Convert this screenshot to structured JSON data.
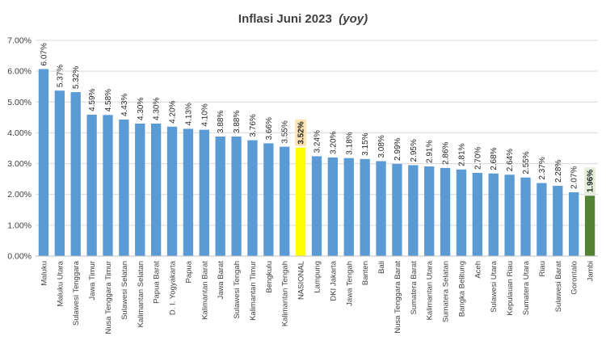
{
  "chart_data": {
    "type": "bar",
    "title": "Inflasi Juni 2023",
    "subtitle": "(yoy)",
    "xlabel": "",
    "ylabel": "",
    "ylim": [
      0,
      7
    ],
    "y_ticks": [
      "0.00%",
      "1.00%",
      "2.00%",
      "3.00%",
      "4.00%",
      "5.00%",
      "6.00%",
      "7.00%"
    ],
    "grid": true,
    "legend": "none",
    "colors": {
      "bar": "#5b9bd5",
      "national": "#ffff00",
      "national_label_bg": "#fce4b4",
      "lowest": "#548235",
      "lowest_label_bg": "#e2efda"
    },
    "categories": [
      "Maluku",
      "Maluku Utara",
      "Sulawesi Tenggara",
      "Jawa Timur",
      "Nusa Tenggara Timur",
      "Sulawesi Selatan",
      "Kalimantan Selatan",
      "Papua Barat",
      "D. I. Yogyakarta",
      "Papua",
      "Kalimantan Barat",
      "Jawa Barat",
      "Sulawesi Tengah",
      "Kalimantan Timur",
      "Bengkulu",
      "Kalimantan Tengah",
      "NASIONAL",
      "Lampung",
      "DKI Jakarta",
      "Jawa Tengah",
      "Banten",
      "Bali",
      "Nusa Tenggara Barat",
      "Sumatera Barat",
      "Kalimantan Utara",
      "Sumatera Selatan",
      "Bangka Belitung",
      "Aceh",
      "Sulawesi Utara",
      "Kepulauan Riau",
      "Sumatera Utara",
      "Riau",
      "Sulawesi Barat",
      "Gorontalo",
      "Jambi"
    ],
    "values": [
      6.07,
      5.37,
      5.32,
      4.59,
      4.58,
      4.43,
      4.3,
      4.3,
      4.2,
      4.13,
      4.1,
      3.88,
      3.88,
      3.76,
      3.66,
      3.55,
      3.52,
      3.24,
      3.2,
      3.18,
      3.15,
      3.08,
      2.99,
      2.95,
      2.91,
      2.86,
      2.81,
      2.7,
      2.68,
      2.64,
      2.55,
      2.37,
      2.28,
      2.07,
      1.96
    ],
    "data_labels": [
      "6.07%",
      "5.37%",
      "5.32%",
      "4.59%",
      "4.58%",
      "4.43%",
      "4.30%",
      "4.30%",
      "4.20%",
      "4.13%",
      "4.10%",
      "3.88%",
      "3.88%",
      "3.76%",
      "3.66%",
      "3.55%",
      "3.52%",
      "3.24%",
      "3.20%",
      "3.18%",
      "3.15%",
      "3.08%",
      "2.99%",
      "2.95%",
      "2.91%",
      "2.86%",
      "2.81%",
      "2.70%",
      "2.68%",
      "2.64%",
      "2.55%",
      "2.37%",
      "2.28%",
      "2.07%",
      "1.96%"
    ],
    "highlight": {
      "national": "NASIONAL",
      "lowest": "Jambi"
    }
  }
}
